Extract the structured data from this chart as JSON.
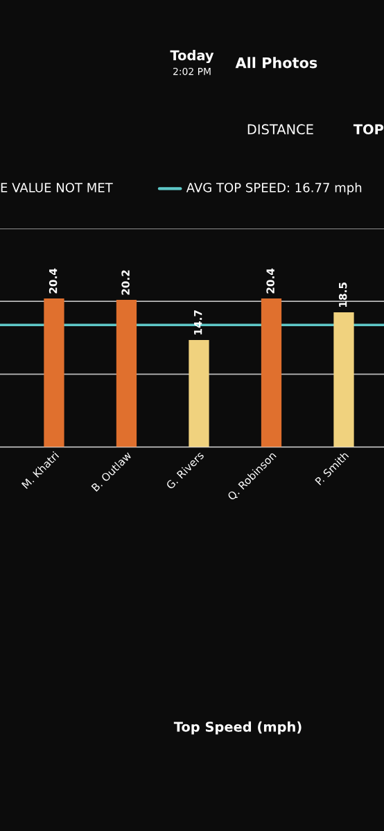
{
  "chart_data": {
    "type": "bar",
    "categories": [
      "M. Khatri",
      "B. Outlaw",
      "G. Rivers",
      "Q. Robinson",
      "P. Smith"
    ],
    "values": [
      20.4,
      20.2,
      14.7,
      20.4,
      18.5
    ],
    "colors": [
      "#e0702e",
      "#e0702e",
      "#f0d27e",
      "#e0702e",
      "#f0d27e"
    ],
    "data_labels": true,
    "ylim": [
      0,
      30
    ],
    "yticks": [
      {
        "value": 0,
        "label": null
      },
      {
        "value": 10,
        "label": null
      },
      {
        "value": 20,
        "label": null
      },
      {
        "value": 30,
        "label": null
      }
    ],
    "tick_labels": "x",
    "grid": "y",
    "legend": "top",
    "ref_lines": [
      {
        "axis": "y",
        "value": 16.77,
        "label": "AVG TOP SPEED: 16.77 mph",
        "color": "#5ec8c8"
      }
    ],
    "annotations": [
      "Today",
      "2:02 PM",
      "All Photos",
      "DISTANCE",
      "TOP",
      "E VALUE NOT MET",
      "Top Speed (mph)"
    ]
  }
}
